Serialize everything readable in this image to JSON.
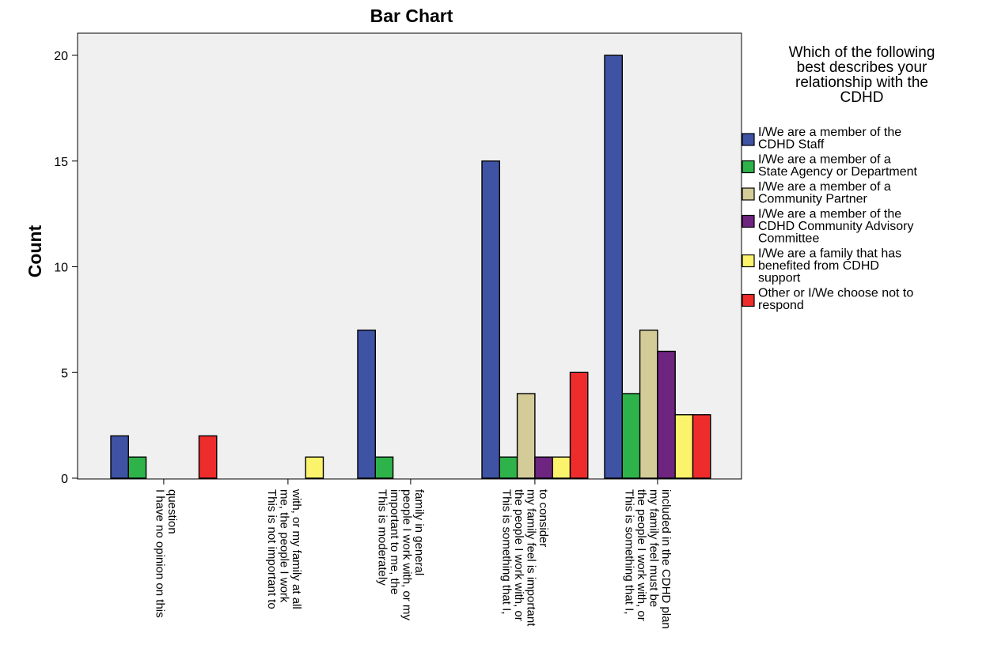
{
  "chart_data": {
    "type": "bar",
    "title": "Bar Chart",
    "xlabel": "",
    "ylabel": "Count",
    "ylim": [
      0,
      21
    ],
    "yticks": [
      0,
      5,
      10,
      15,
      20
    ],
    "grid": false,
    "legend_placement": "right",
    "legend_title": [
      "Which of the following",
      "best describes your",
      "relationship with the",
      "CDHD"
    ],
    "categories": [
      [
        "I have no opinion on this",
        "question"
      ],
      [
        "This is not important to",
        "me, the people I work",
        "with, or my family at all"
      ],
      [
        "This is moderately",
        "important to me, the",
        "people I work with, or my",
        "family in general"
      ],
      [
        "This is something that I,",
        "the people I work with, or",
        "my family feel is important",
        "to consider"
      ],
      [
        "This is something that I,",
        "the people I work with, or",
        "my family feel must be",
        "included in the CDHD plan"
      ]
    ],
    "series": [
      {
        "name": [
          "I/We are a member of the",
          "CDHD Staff"
        ],
        "color": "#3e53a4",
        "values": [
          2,
          0,
          7,
          15,
          20
        ]
      },
      {
        "name": [
          "I/We are a member of a",
          "State Agency or Department"
        ],
        "color": "#2eb34a",
        "values": [
          1,
          0,
          1,
          1,
          4
        ]
      },
      {
        "name": [
          "I/We are a member of a",
          "Community Partner"
        ],
        "color": "#d4cc98",
        "values": [
          0,
          0,
          0,
          4,
          7
        ]
      },
      {
        "name": [
          "I/We are a member of the",
          "CDHD Community Advisory",
          "Committee"
        ],
        "color": "#6e2580",
        "values": [
          0,
          0,
          0,
          1,
          6
        ]
      },
      {
        "name": [
          "I/We are a family that has",
          "benefited from CDHD",
          "support"
        ],
        "color": "#fbf36c",
        "values": [
          0,
          1,
          0,
          1,
          3
        ]
      },
      {
        "name": [
          "Other or I/We choose not to",
          "respond"
        ],
        "color": "#ee2c2c",
        "values": [
          2,
          0,
          0,
          5,
          3
        ]
      }
    ]
  },
  "colors": {
    "plot_background": "#f0f0f0",
    "axis": "#000000"
  }
}
